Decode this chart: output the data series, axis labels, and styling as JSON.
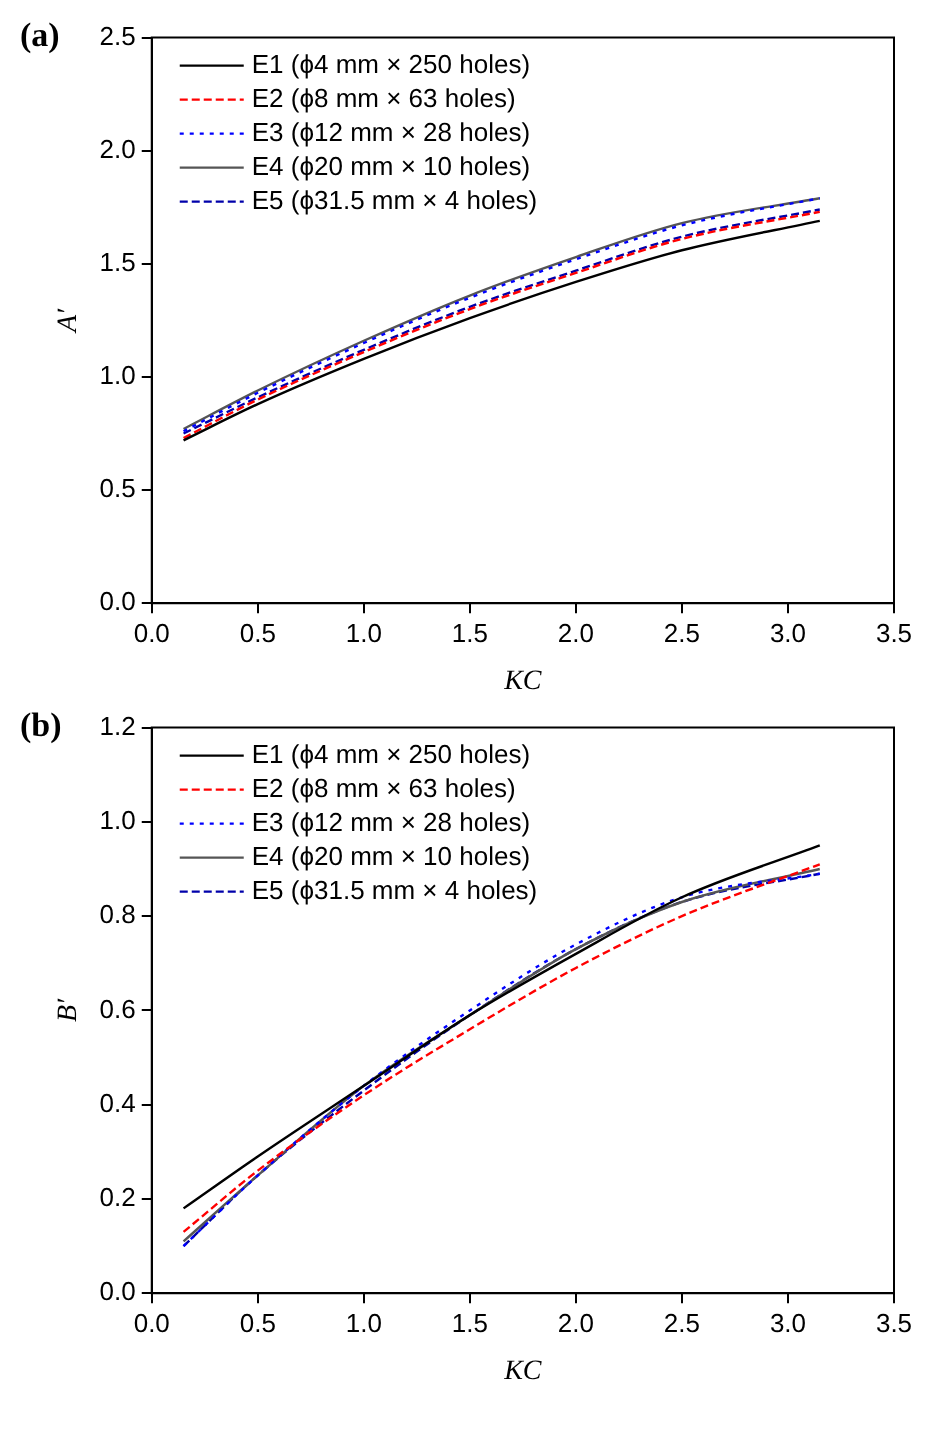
{
  "chart_data": [
    {
      "type": "line",
      "title": "(a)",
      "xlabel": "KC",
      "ylabel": "A′",
      "x": [
        0.15,
        0.5,
        1.0,
        1.5,
        2.0,
        2.5,
        3.15
      ],
      "xlim": [
        0,
        3.5
      ],
      "xticks": [
        {
          "value": 0,
          "label": "0.0"
        },
        {
          "value": 0.5,
          "label": "0.5"
        },
        {
          "value": 1,
          "label": "1.0"
        },
        {
          "value": 1.5,
          "label": "1.5"
        },
        {
          "value": 2,
          "label": "2.0"
        },
        {
          "value": 2.5,
          "label": "2.5"
        },
        {
          "value": 3,
          "label": "3.0"
        },
        {
          "value": 3.5,
          "label": "3.5"
        }
      ],
      "ylim": [
        0,
        2.5
      ],
      "yticks": [
        {
          "value": 0,
          "label": "0.0"
        },
        {
          "value": 0.5,
          "label": "0.5"
        },
        {
          "value": 1,
          "label": "1.0"
        },
        {
          "value": 1.5,
          "label": "1.5"
        },
        {
          "value": 2,
          "label": "2.0"
        },
        {
          "value": 2.5,
          "label": "2.5"
        }
      ],
      "legend": "top left",
      "marker": "none",
      "series": [
        {
          "name": "E1 (ϕ4 mm × 250 holes)",
          "color": "#000000",
          "line_style": "solid",
          "values": [
            0.72,
            0.88,
            1.08,
            1.26,
            1.42,
            1.56,
            1.69
          ]
        },
        {
          "name": "E2 (ϕ8 mm × 63 holes)",
          "color": "#ff0000",
          "line_style": "dashed",
          "values": [
            0.73,
            0.9,
            1.11,
            1.3,
            1.46,
            1.61,
            1.73
          ]
        },
        {
          "name": "E3 (ϕ12 mm × 28 holes)",
          "color": "#0000ff",
          "line_style": "dotted",
          "values": [
            0.76,
            0.93,
            1.15,
            1.35,
            1.52,
            1.67,
            1.79
          ]
        },
        {
          "name": "E4 (ϕ20 mm × 10 holes)",
          "color": "#555555",
          "line_style": "solid",
          "values": [
            0.77,
            0.94,
            1.16,
            1.36,
            1.53,
            1.68,
            1.79
          ]
        },
        {
          "name": "E5 (ϕ31.5 mm × 4 holes)",
          "color": "#0000aa",
          "line_style": "dashed",
          "values": [
            0.75,
            0.91,
            1.12,
            1.31,
            1.47,
            1.62,
            1.74
          ]
        }
      ]
    },
    {
      "type": "line",
      "title": "(b)",
      "xlabel": "KC",
      "ylabel": "B′",
      "x": [
        0.15,
        0.5,
        1.0,
        1.5,
        2.0,
        2.5,
        3.15
      ],
      "xlim": [
        0,
        3.5
      ],
      "xticks": [
        {
          "value": 0,
          "label": "0.0"
        },
        {
          "value": 0.5,
          "label": "0.5"
        },
        {
          "value": 1,
          "label": "1.0"
        },
        {
          "value": 1.5,
          "label": "1.5"
        },
        {
          "value": 2,
          "label": "2.0"
        },
        {
          "value": 2.5,
          "label": "2.5"
        },
        {
          "value": 3,
          "label": "3.0"
        },
        {
          "value": 3.5,
          "label": "3.5"
        }
      ],
      "ylim": [
        0,
        1.2
      ],
      "yticks": [
        {
          "value": 0,
          "label": "0.0"
        },
        {
          "value": 0.2,
          "label": "0.2"
        },
        {
          "value": 0.4,
          "label": "0.4"
        },
        {
          "value": 0.6,
          "label": "0.6"
        },
        {
          "value": 0.8,
          "label": "0.8"
        },
        {
          "value": 1,
          "label": "1.0"
        },
        {
          "value": 1.2,
          "label": "1.2"
        }
      ],
      "legend": "top left",
      "marker": "none",
      "series": [
        {
          "name": "E1 (ϕ4 mm × 250 holes)",
          "color": "#000000",
          "line_style": "solid",
          "values": [
            0.18,
            0.29,
            0.44,
            0.59,
            0.72,
            0.84,
            0.95
          ]
        },
        {
          "name": "E2 (ϕ8 mm × 63 holes)",
          "color": "#ff0000",
          "line_style": "dashed",
          "values": [
            0.13,
            0.26,
            0.42,
            0.56,
            0.69,
            0.8,
            0.91
          ]
        },
        {
          "name": "E3 (ϕ12 mm × 28 holes)",
          "color": "#0000ff",
          "line_style": "dotted",
          "values": [
            0.1,
            0.25,
            0.44,
            0.6,
            0.74,
            0.84,
            0.89
          ]
        },
        {
          "name": "E4 (ϕ20 mm × 10 holes)",
          "color": "#555555",
          "line_style": "solid",
          "values": [
            0.11,
            0.25,
            0.44,
            0.59,
            0.73,
            0.83,
            0.9
          ]
        },
        {
          "name": "E5 (ϕ31.5 mm × 4 holes)",
          "color": "#0000aa",
          "line_style": "dashed",
          "values": [
            0.1,
            0.25,
            0.43,
            0.59,
            0.73,
            0.83,
            0.89
          ]
        }
      ]
    }
  ]
}
